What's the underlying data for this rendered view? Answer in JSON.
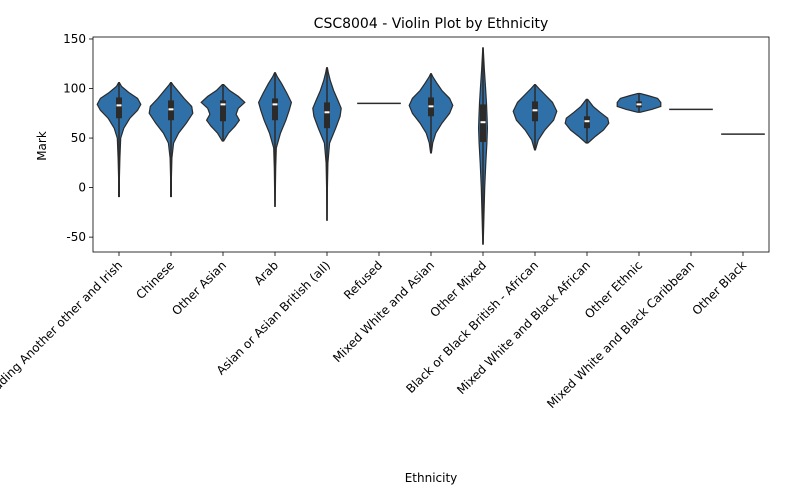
{
  "colors": {
    "violin_fill": "#2f70a8",
    "violin_edge": "#2b2b2b",
    "box": "#2b2b2b",
    "median": "#ffffff"
  },
  "chart_data": {
    "type": "violin",
    "title": "CSC8004 - Violin Plot by Ethnicity",
    "xlabel": "Ethnicity",
    "ylabel": "Mark",
    "ylim": [
      -65,
      152
    ],
    "yticks": [
      -50,
      0,
      50,
      100,
      150
    ],
    "grid": false,
    "legend": "none",
    "categories": [
      "White including Another other and Irish",
      "Chinese",
      "Other Asian",
      "Arab",
      "Asian or Asian British (all)",
      "Refused",
      "Mixed White and Asian",
      "Other Mixed",
      "Black or Black British - African",
      "Mixed White and Black African",
      "Other Ethnic",
      "Mixed White and Black Caribbean",
      "Other Black"
    ],
    "violins": [
      {
        "min": -9,
        "max": 106,
        "q1": 70,
        "median": 83,
        "q3": 91,
        "density": [
          [
            -9,
            0.02
          ],
          [
            10,
            0.02
          ],
          [
            30,
            0.04
          ],
          [
            50,
            0.08
          ],
          [
            60,
            0.22
          ],
          [
            70,
            0.5
          ],
          [
            78,
            0.85
          ],
          [
            84,
            1.0
          ],
          [
            90,
            0.85
          ],
          [
            96,
            0.45
          ],
          [
            102,
            0.12
          ],
          [
            106,
            0.02
          ]
        ]
      },
      {
        "min": -9,
        "max": 106,
        "q1": 68,
        "median": 79,
        "q3": 88,
        "density": [
          [
            -9,
            0.02
          ],
          [
            10,
            0.02
          ],
          [
            30,
            0.04
          ],
          [
            45,
            0.12
          ],
          [
            55,
            0.35
          ],
          [
            65,
            0.7
          ],
          [
            75,
            1.0
          ],
          [
            82,
            0.95
          ],
          [
            90,
            0.6
          ],
          [
            98,
            0.3
          ],
          [
            104,
            0.08
          ],
          [
            106,
            0.02
          ]
        ]
      },
      {
        "min": 47,
        "max": 104,
        "q1": 67,
        "median": 84,
        "q3": 88,
        "density": [
          [
            47,
            0.03
          ],
          [
            55,
            0.25
          ],
          [
            62,
            0.55
          ],
          [
            68,
            0.75
          ],
          [
            74,
            0.6
          ],
          [
            80,
            0.7
          ],
          [
            86,
            1.0
          ],
          [
            92,
            0.7
          ],
          [
            98,
            0.3
          ],
          [
            104,
            0.03
          ]
        ]
      },
      {
        "min": -19,
        "max": 116,
        "q1": 68,
        "median": 84,
        "q3": 90,
        "density": [
          [
            -19,
            0.01
          ],
          [
            0,
            0.02
          ],
          [
            20,
            0.03
          ],
          [
            40,
            0.06
          ],
          [
            55,
            0.25
          ],
          [
            68,
            0.5
          ],
          [
            78,
            0.65
          ],
          [
            86,
            0.75
          ],
          [
            95,
            0.55
          ],
          [
            105,
            0.3
          ],
          [
            112,
            0.1
          ],
          [
            116,
            0.02
          ]
        ]
      },
      {
        "min": -33,
        "max": 121,
        "q1": 60,
        "median": 76,
        "q3": 86,
        "density": [
          [
            -33,
            0.01
          ],
          [
            0,
            0.02
          ],
          [
            25,
            0.04
          ],
          [
            45,
            0.12
          ],
          [
            60,
            0.4
          ],
          [
            72,
            0.6
          ],
          [
            80,
            0.65
          ],
          [
            88,
            0.5
          ],
          [
            98,
            0.3
          ],
          [
            108,
            0.15
          ],
          [
            116,
            0.06
          ],
          [
            121,
            0.02
          ]
        ]
      },
      {
        "min": 85,
        "max": 85,
        "q1": 85,
        "median": 85,
        "q3": 85,
        "density": []
      },
      {
        "min": 35,
        "max": 115,
        "q1": 72,
        "median": 82,
        "q3": 91,
        "density": [
          [
            35,
            0.02
          ],
          [
            45,
            0.08
          ],
          [
            55,
            0.22
          ],
          [
            65,
            0.5
          ],
          [
            75,
            0.85
          ],
          [
            83,
            1.0
          ],
          [
            90,
            0.85
          ],
          [
            98,
            0.5
          ],
          [
            106,
            0.25
          ],
          [
            112,
            0.08
          ],
          [
            115,
            0.02
          ]
        ]
      },
      {
        "min": -57,
        "max": 141,
        "q1": 46,
        "median": 66,
        "q3": 84,
        "density": [
          [
            -57,
            0.01
          ],
          [
            -30,
            0.04
          ],
          [
            0,
            0.08
          ],
          [
            25,
            0.13
          ],
          [
            45,
            0.18
          ],
          [
            60,
            0.2
          ],
          [
            70,
            0.19
          ],
          [
            85,
            0.16
          ],
          [
            100,
            0.12
          ],
          [
            120,
            0.06
          ],
          [
            141,
            0.01
          ]
        ]
      },
      {
        "min": 38,
        "max": 104,
        "q1": 67,
        "median": 78,
        "q3": 87,
        "density": [
          [
            38,
            0.02
          ],
          [
            48,
            0.15
          ],
          [
            58,
            0.45
          ],
          [
            68,
            0.85
          ],
          [
            77,
            1.0
          ],
          [
            86,
            0.8
          ],
          [
            94,
            0.45
          ],
          [
            100,
            0.18
          ],
          [
            104,
            0.02
          ]
        ]
      },
      {
        "min": 45,
        "max": 89,
        "q1": 60,
        "median": 67,
        "q3": 72,
        "density": [
          [
            45,
            0.04
          ],
          [
            52,
            0.4
          ],
          [
            58,
            0.75
          ],
          [
            65,
            1.0
          ],
          [
            70,
            0.95
          ],
          [
            76,
            0.6
          ],
          [
            82,
            0.28
          ],
          [
            89,
            0.03
          ]
        ]
      },
      {
        "min": 76,
        "max": 95,
        "q1": 81,
        "median": 84,
        "q3": 87,
        "density": [
          [
            76,
            0.05
          ],
          [
            79,
            0.6
          ],
          [
            82,
            1.0
          ],
          [
            86,
            1.0
          ],
          [
            90,
            0.85
          ],
          [
            93,
            0.4
          ],
          [
            95,
            0.05
          ]
        ]
      },
      {
        "min": 79,
        "max": 79,
        "q1": 79,
        "median": 79,
        "q3": 79,
        "density": []
      },
      {
        "min": 54,
        "max": 54,
        "q1": 54,
        "median": 54,
        "q3": 54,
        "density": []
      }
    ]
  }
}
